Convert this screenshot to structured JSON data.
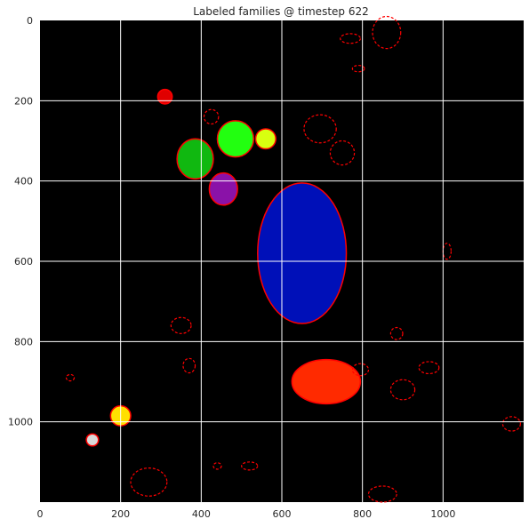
{
  "chart_data": {
    "type": "heatmap",
    "title": "Labeled families @ timestep 622",
    "xlabel": "",
    "ylabel": "",
    "xlim": [
      0,
      1200
    ],
    "ylim": [
      1200,
      0
    ],
    "grid": true,
    "background_color": "#000000",
    "grid_color": "#ffffff",
    "x_ticks": [
      "0",
      "200",
      "400",
      "600",
      "800",
      "1000"
    ],
    "y_ticks": [
      "0",
      "200",
      "400",
      "600",
      "800",
      "1000"
    ],
    "families": [
      {
        "label": "blue",
        "color": "#0010b8",
        "cx": 650,
        "cy": 580,
        "rx": 110,
        "ry": 175
      },
      {
        "label": "orange-red",
        "color": "#ff2a00",
        "cx": 710,
        "cy": 900,
        "rx": 85,
        "ry": 55
      },
      {
        "label": "bright green",
        "color": "#22ff10",
        "cx": 485,
        "cy": 295,
        "rx": 45,
        "ry": 45
      },
      {
        "label": "dark green",
        "color": "#10b810",
        "cx": 385,
        "cy": 345,
        "rx": 45,
        "ry": 50
      },
      {
        "label": "purple",
        "color": "#8a12a8",
        "cx": 455,
        "cy": 420,
        "rx": 35,
        "ry": 40
      },
      {
        "label": "yellow-green",
        "color": "#d8ff10",
        "cx": 560,
        "cy": 295,
        "rx": 25,
        "ry": 25
      },
      {
        "label": "yellow",
        "color": "#ffe000",
        "cx": 200,
        "cy": 985,
        "rx": 25,
        "ry": 25
      },
      {
        "label": "red",
        "color": "#e00000",
        "cx": 310,
        "cy": 190,
        "rx": 18,
        "ry": 18
      },
      {
        "label": "light gray",
        "color": "#d8d8d8",
        "cx": 130,
        "cy": 1045,
        "rx": 15,
        "ry": 15
      }
    ],
    "outline_color": "#ff0000",
    "outline_rings": [
      {
        "cx": 860,
        "cy": 30,
        "rx": 35,
        "ry": 40
      },
      {
        "cx": 695,
        "cy": 270,
        "rx": 40,
        "ry": 35
      },
      {
        "cx": 750,
        "cy": 330,
        "rx": 30,
        "ry": 30
      },
      {
        "cx": 900,
        "cy": 920,
        "rx": 30,
        "ry": 25
      },
      {
        "cx": 850,
        "cy": 1180,
        "rx": 35,
        "ry": 20
      },
      {
        "cx": 1170,
        "cy": 1005,
        "rx": 22,
        "ry": 18
      },
      {
        "cx": 270,
        "cy": 1150,
        "rx": 45,
        "ry": 35
      },
      {
        "cx": 350,
        "cy": 760,
        "rx": 25,
        "ry": 20
      },
      {
        "cx": 370,
        "cy": 860,
        "rx": 15,
        "ry": 18
      },
      {
        "cx": 425,
        "cy": 240,
        "rx": 18,
        "ry": 18
      },
      {
        "cx": 795,
        "cy": 870,
        "rx": 20,
        "ry": 15
      },
      {
        "cx": 1010,
        "cy": 575,
        "rx": 10,
        "ry": 20
      },
      {
        "cx": 75,
        "cy": 890,
        "rx": 10,
        "ry": 8
      },
      {
        "cx": 885,
        "cy": 780,
        "rx": 15,
        "ry": 15
      },
      {
        "cx": 440,
        "cy": 1110,
        "rx": 10,
        "ry": 8
      },
      {
        "cx": 770,
        "cy": 45,
        "rx": 25,
        "ry": 12
      },
      {
        "cx": 790,
        "cy": 120,
        "rx": 15,
        "ry": 8
      },
      {
        "cx": 965,
        "cy": 865,
        "rx": 25,
        "ry": 15
      },
      {
        "cx": 520,
        "cy": 1110,
        "rx": 20,
        "ry": 10
      }
    ]
  }
}
